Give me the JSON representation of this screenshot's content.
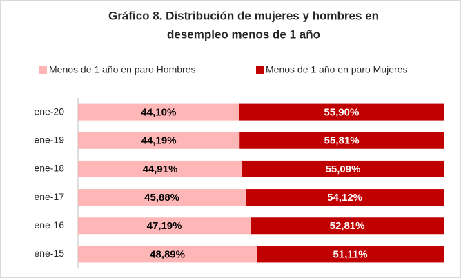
{
  "chart_data": {
    "type": "bar",
    "orientation": "horizontal",
    "stacked": true,
    "title": [
      "Gráfico 8. Distribución de mujeres y hombres en",
      "desempleo menos de 1 año"
    ],
    "categories": [
      "ene-20",
      "ene-19",
      "ene-18",
      "ene-17",
      "ene-16",
      "ene-15"
    ],
    "xlim": [
      0,
      100
    ],
    "legend": "top",
    "series": [
      {
        "name": "Menos de 1 año en paro Hombres",
        "color": "#ffb6b6",
        "label_color": "#000000",
        "values": [
          44.1,
          44.19,
          44.91,
          45.88,
          47.19,
          48.89
        ],
        "value_labels": [
          "44,10%",
          "44,19%",
          "44,91%",
          "45,88%",
          "47,19%",
          "48,89%"
        ]
      },
      {
        "name": "Menos de 1 año en paro Mujeres",
        "color": "#c00000",
        "label_color": "#ffffff",
        "values": [
          55.9,
          55.81,
          55.09,
          54.12,
          52.81,
          51.11
        ],
        "value_labels": [
          "55,90%",
          "55,81%",
          "55,09%",
          "54,12%",
          "52,81%",
          "51,11%"
        ]
      }
    ]
  }
}
